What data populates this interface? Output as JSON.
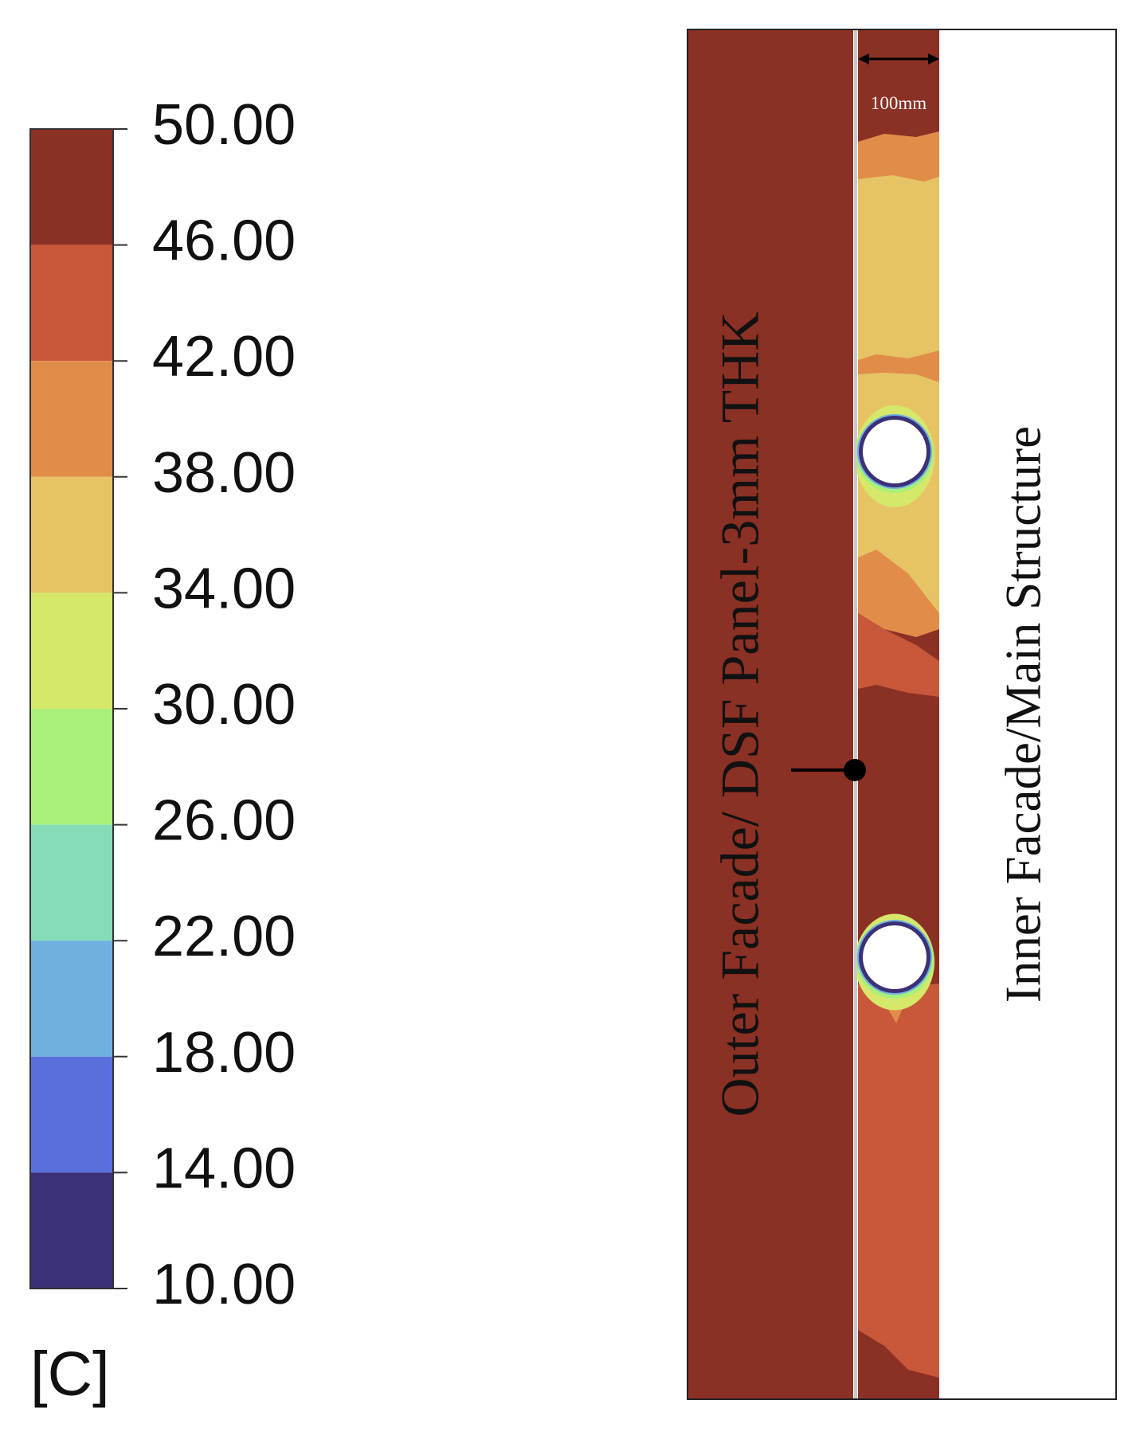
{
  "colorbar": {
    "ticks": [
      {
        "value": 50,
        "label": "50.00"
      },
      {
        "value": 46,
        "label": "46.00"
      },
      {
        "value": 42,
        "label": "42.00"
      },
      {
        "value": 38,
        "label": "38.00"
      },
      {
        "value": 34,
        "label": "34.00"
      },
      {
        "value": 30,
        "label": "30.00"
      },
      {
        "value": 26,
        "label": "26.00"
      },
      {
        "value": 22,
        "label": "22.00"
      },
      {
        "value": 18,
        "label": "18.00"
      },
      {
        "value": 14,
        "label": "14.00"
      },
      {
        "value": 10,
        "label": "10.00"
      }
    ],
    "colors": [
      "#8b3024",
      "#c9573a",
      "#e28c4a",
      "#e6c465",
      "#d6e86a",
      "#a8f07a",
      "#86dbb8",
      "#6fb0e0",
      "#5a6fdc",
      "#3b3178"
    ],
    "unit": "[C]"
  },
  "annotations": {
    "dimension": "100mm",
    "outer": "Outer Facade/ DSF Panel-3mm THK",
    "inner": "Inner Facade/Main Structure"
  }
}
